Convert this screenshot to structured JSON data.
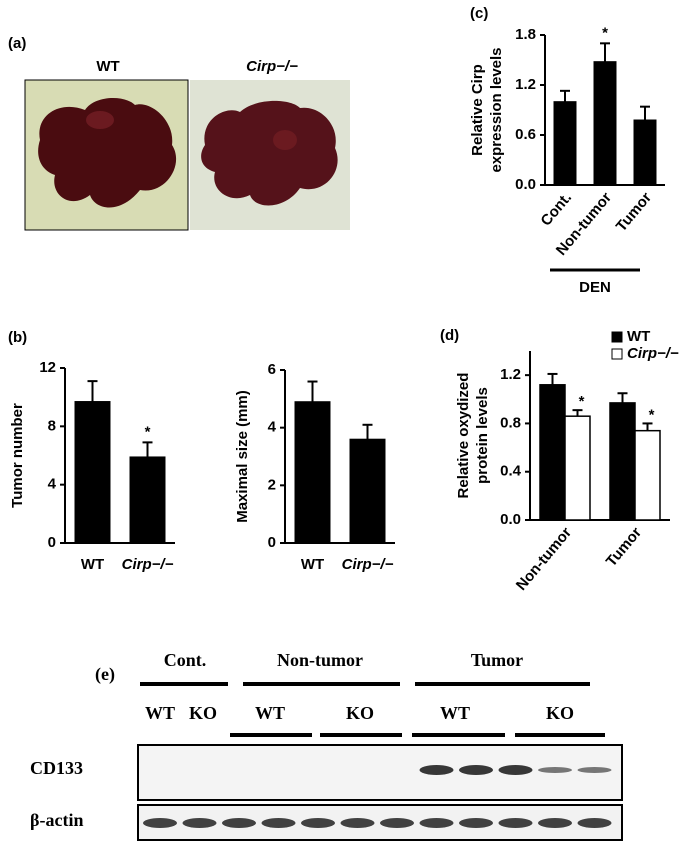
{
  "panel_labels": [
    "(a)",
    "(b)",
    "(c)",
    "(d)",
    "(e)"
  ],
  "photo": {
    "labels": [
      "WT",
      "Cirp−/−"
    ]
  },
  "chart_data": [
    {
      "type": "bar",
      "ylabel": [
        "Tumor number"
      ],
      "categories": [
        "WT",
        "Cirp−/−"
      ],
      "values": [
        9.7,
        5.9
      ],
      "errors": [
        1.4,
        1.0
      ],
      "significance": [
        null,
        "*"
      ],
      "color": "#000000",
      "ylim": [
        0,
        12
      ],
      "yticks": [
        0,
        4,
        8,
        12
      ]
    },
    {
      "type": "bar",
      "ylabel": [
        "Maximal size (mm)"
      ],
      "categories": [
        "WT",
        "Cirp−/−"
      ],
      "values": [
        4.9,
        3.6
      ],
      "errors": [
        0.7,
        0.5
      ],
      "color": "#000000",
      "ylim": [
        0,
        6
      ],
      "yticks": [
        0,
        2,
        4,
        6
      ]
    },
    {
      "type": "bar",
      "ylabel": [
        "Relative Cirp",
        "expression levels"
      ],
      "categories": [
        "Cont.",
        "Non-tumor",
        "Tumor"
      ],
      "values": [
        1.0,
        1.48,
        0.78
      ],
      "errors": [
        0.13,
        0.22,
        0.16
      ],
      "significance": [
        null,
        "*",
        null
      ],
      "color": "#000000",
      "ylim": [
        0,
        1.8
      ],
      "yticks": [
        {
          "value": 0,
          "label": "0.0"
        },
        0.6,
        1.2,
        1.8
      ],
      "group_label": "DEN"
    },
    {
      "type": "grouped-bar",
      "ylabel": [
        "Relative oxydized",
        "protein levels"
      ],
      "categories": [
        "Non-tumor",
        "Tumor"
      ],
      "series": [
        {
          "name": "WT",
          "color": "#000000",
          "values": [
            1.12,
            0.97
          ],
          "errors": [
            0.09,
            0.08
          ]
        },
        {
          "name": "Cirp−/−",
          "color": "#ffffff",
          "values": [
            0.86,
            0.74
          ],
          "errors": [
            0.05,
            0.06
          ],
          "significance": [
            "*",
            "*"
          ]
        }
      ],
      "ylim": [
        0,
        1.4
      ],
      "yticks": [
        {
          "value": 0,
          "label": "0.0"
        },
        0.4,
        0.8,
        1.2
      ],
      "legend": "top-right"
    }
  ],
  "blot": {
    "headers": [
      "Cont.",
      "Non-tumor",
      "Tumor"
    ],
    "lane_labels": [
      "WT",
      "KO",
      "WT",
      "KO",
      "WT",
      "KO"
    ],
    "rows": [
      "CD133",
      "β-actin"
    ]
  }
}
